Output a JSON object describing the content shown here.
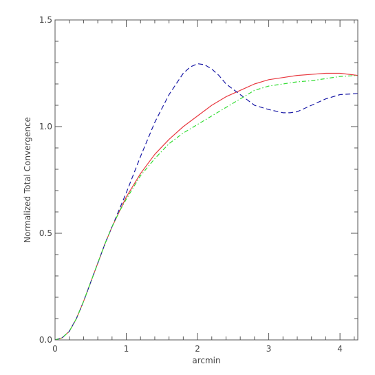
{
  "chart_data": {
    "type": "line",
    "title": "",
    "xlabel": "arcmin",
    "ylabel": "Normalized Total Convergence",
    "xlim": [
      0,
      4.25
    ],
    "ylim": [
      0,
      1.5
    ],
    "x_ticks": [
      0,
      1,
      2,
      3,
      4
    ],
    "x_tick_labels": [
      "0",
      "1",
      "2",
      "3",
      "4"
    ],
    "y_ticks": [
      0,
      0.5,
      1.0,
      1.5
    ],
    "y_tick_labels": [
      "0.0",
      "0.5",
      "1.0",
      "1.5"
    ],
    "grid": false,
    "legend": "none",
    "series": [
      {
        "color": "#e8383f",
        "style": "solid",
        "x": [
          0,
          0.1,
          0.2,
          0.3,
          0.4,
          0.5,
          0.6,
          0.7,
          0.8,
          0.9,
          1.0,
          1.2,
          1.4,
          1.6,
          1.8,
          2.0,
          2.2,
          2.4,
          2.6,
          2.8,
          3.0,
          3.2,
          3.4,
          3.6,
          3.8,
          4.0,
          4.25
        ],
        "y": [
          0,
          0.01,
          0.04,
          0.1,
          0.18,
          0.27,
          0.36,
          0.45,
          0.53,
          0.6,
          0.67,
          0.78,
          0.87,
          0.94,
          1.0,
          1.05,
          1.1,
          1.14,
          1.17,
          1.2,
          1.22,
          1.23,
          1.24,
          1.245,
          1.25,
          1.25,
          1.24
        ]
      },
      {
        "color": "#1a1aa6",
        "style": "dashed",
        "x": [
          0,
          0.1,
          0.2,
          0.3,
          0.4,
          0.5,
          0.6,
          0.7,
          0.8,
          0.9,
          1.0,
          1.2,
          1.4,
          1.6,
          1.7,
          1.8,
          1.9,
          2.0,
          2.1,
          2.2,
          2.3,
          2.4,
          2.6,
          2.8,
          3.0,
          3.2,
          3.3,
          3.4,
          3.6,
          3.8,
          4.0,
          4.25
        ],
        "y": [
          0,
          0.01,
          0.04,
          0.1,
          0.18,
          0.27,
          0.36,
          0.45,
          0.53,
          0.61,
          0.69,
          0.86,
          1.02,
          1.15,
          1.2,
          1.25,
          1.28,
          1.295,
          1.29,
          1.27,
          1.24,
          1.2,
          1.15,
          1.1,
          1.08,
          1.065,
          1.065,
          1.07,
          1.1,
          1.13,
          1.15,
          1.155
        ]
      },
      {
        "color": "#33dd33",
        "style": "dash-dot",
        "x": [
          0,
          0.1,
          0.2,
          0.3,
          0.4,
          0.5,
          0.6,
          0.7,
          0.8,
          0.9,
          1.0,
          1.2,
          1.4,
          1.6,
          1.8,
          2.0,
          2.2,
          2.4,
          2.6,
          2.8,
          3.0,
          3.2,
          3.4,
          3.6,
          3.8,
          4.0,
          4.25
        ],
        "y": [
          0,
          0.01,
          0.04,
          0.1,
          0.18,
          0.27,
          0.36,
          0.45,
          0.53,
          0.6,
          0.66,
          0.77,
          0.85,
          0.92,
          0.97,
          1.01,
          1.05,
          1.09,
          1.13,
          1.17,
          1.19,
          1.2,
          1.21,
          1.215,
          1.225,
          1.235,
          1.24
        ]
      }
    ]
  }
}
